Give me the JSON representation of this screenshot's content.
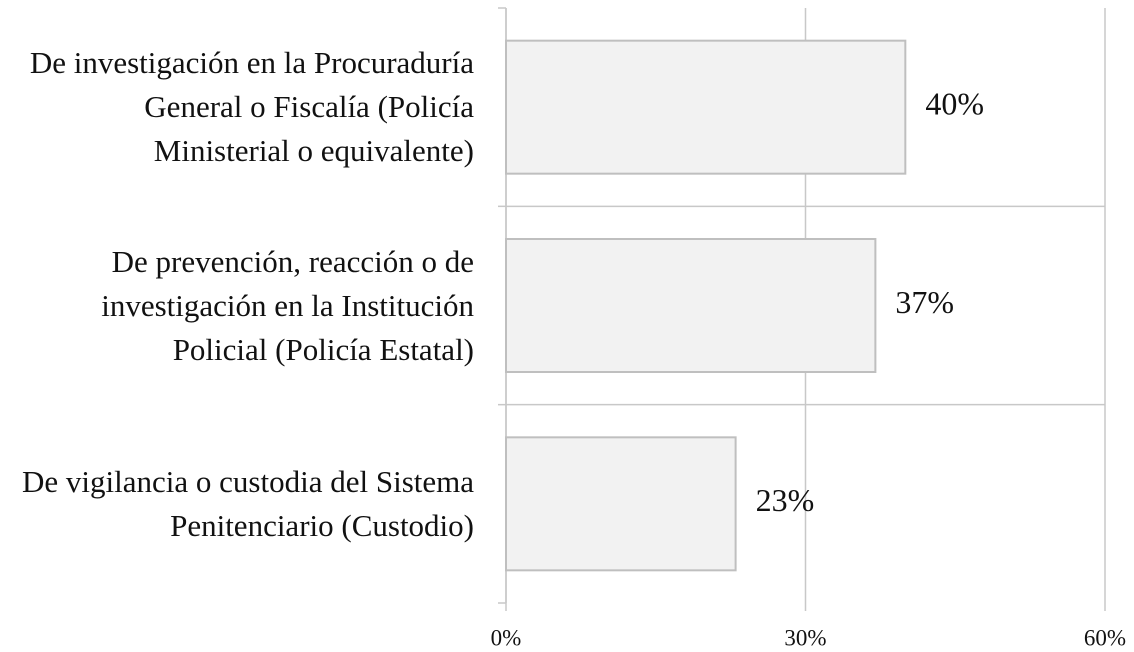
{
  "chart_data": {
    "type": "bar",
    "orientation": "horizontal",
    "categories": [
      "De investigación en la Procuraduría General o Fiscalía (Policía Ministerial o equivalente)",
      "De prevención, reacción o de investigación en la Institución Policial (Policía Estatal)",
      "De vigilancia o custodia del Sistema Penitenciario (Custodio)"
    ],
    "values": [
      40,
      37,
      23
    ],
    "value_labels": [
      "40%",
      "37%",
      "23%"
    ],
    "color": "#f2f2f2",
    "xlim": [
      0,
      60
    ],
    "xticks": [
      {
        "value": 0,
        "label": "0%"
      },
      {
        "value": 30,
        "label": "30%"
      },
      {
        "value": 60,
        "label": "60%"
      }
    ],
    "grid": true
  }
}
